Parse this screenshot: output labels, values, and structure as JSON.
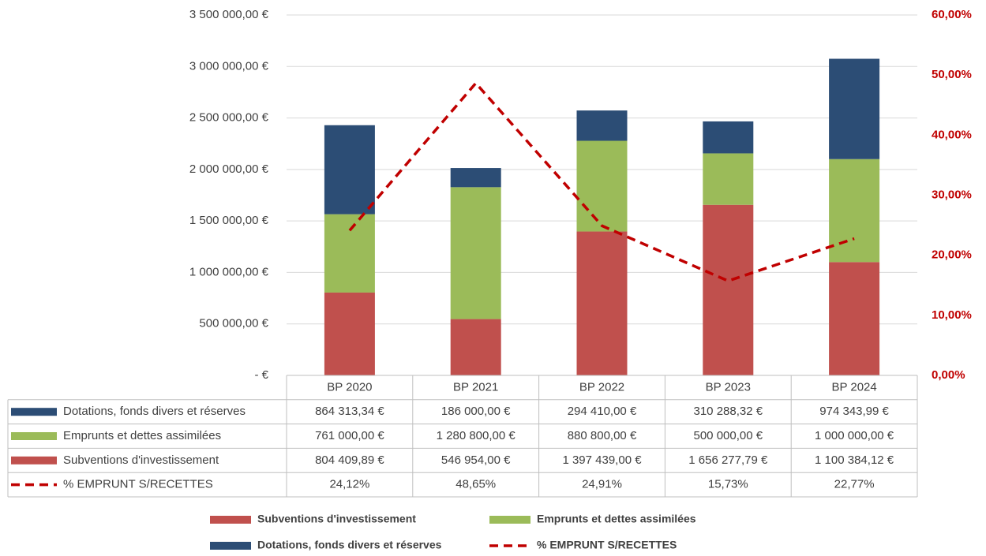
{
  "chart_data": {
    "type": "bar",
    "categories": [
      "BP 2020",
      "BP 2021",
      "BP 2022",
      "BP 2023",
      "BP 2024"
    ],
    "series": [
      {
        "name": "Subventions d'investissement",
        "color": "#c0504d",
        "type": "bar",
        "values": [
          804409.89,
          546954,
          1397439,
          1656277.79,
          1100384.12
        ],
        "value_labels": [
          "804 409,89 €",
          "546 954,00 €",
          "1 397 439,00 €",
          "1 656 277,79 €",
          "1 100 384,12 €"
        ]
      },
      {
        "name": "Emprunts et dettes assimilées",
        "color": "#9bbb59",
        "type": "bar",
        "values": [
          761000,
          1280800,
          880800,
          500000,
          1000000
        ],
        "value_labels": [
          "761 000,00 €",
          "1 280 800,00 €",
          "880 800,00 €",
          "500 000,00 €",
          "1 000 000,00 €"
        ]
      },
      {
        "name": "Dotations, fonds divers et réserves",
        "color": "#2c4d75",
        "type": "bar",
        "values": [
          864313.34,
          186000,
          294410,
          310288.32,
          974343.99
        ],
        "value_labels": [
          "864 313,34 €",
          "186 000,00 €",
          "294 410,00 €",
          "310 288,32 €",
          "974 343,99 €"
        ]
      },
      {
        "name": "% EMPRUNT S/RECETTES",
        "color": "#c00000",
        "type": "line",
        "axis": "y2",
        "dashed": true,
        "values": [
          24.12,
          48.65,
          24.91,
          15.73,
          22.77
        ],
        "value_labels": [
          "24,12%",
          "48,65%",
          "24,91%",
          "15,73%",
          "22,77%"
        ]
      }
    ],
    "stacked": true,
    "ylim": [
      0,
      3500000
    ],
    "yticks": [
      {
        "value": 0,
        "label": "-   €"
      },
      {
        "value": 500000,
        "label": "500 000,00 €"
      },
      {
        "value": 1000000,
        "label": "1 000 000,00 €"
      },
      {
        "value": 1500000,
        "label": "1 500 000,00 €"
      },
      {
        "value": 2000000,
        "label": "2 000 000,00 €"
      },
      {
        "value": 2500000,
        "label": "2 500 000,00 €"
      },
      {
        "value": 3000000,
        "label": "3 000 000,00 €"
      },
      {
        "value": 3500000,
        "label": "3 500 000,00 €"
      }
    ],
    "y2lim": [
      0,
      60
    ],
    "y2ticks": [
      {
        "value": 0,
        "label": "0,00%"
      },
      {
        "value": 10,
        "label": "10,00%"
      },
      {
        "value": 20,
        "label": "20,00%"
      },
      {
        "value": 30,
        "label": "30,00%"
      },
      {
        "value": 40,
        "label": "40,00%"
      },
      {
        "value": 50,
        "label": "50,00%"
      },
      {
        "value": 60,
        "label": "60,00%"
      }
    ],
    "grid": true,
    "data_table": true,
    "legend": "bottom"
  }
}
